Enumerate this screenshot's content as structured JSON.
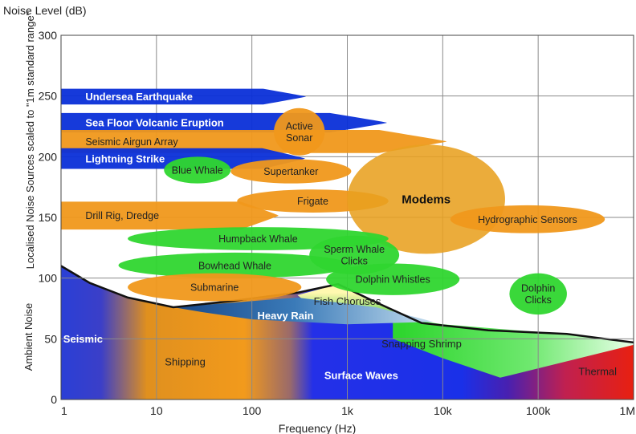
{
  "chart_data": {
    "type": "area",
    "title": "Noise Level (dB)",
    "xlabel": "Frequency (Hz)",
    "ylabel_upper": "Localised Noise Sources scaled to \"1m standard range\"",
    "ylabel_lower": "Ambient Noise",
    "x_scale": "log",
    "xlim": [
      1,
      1000000
    ],
    "ylim": [
      0,
      300
    ],
    "x_ticks": [
      {
        "value": 1,
        "label": "1"
      },
      {
        "value": 10,
        "label": "10"
      },
      {
        "value": 100,
        "label": "100"
      },
      {
        "value": 1000,
        "label": "1k"
      },
      {
        "value": 10000,
        "label": "10k"
      },
      {
        "value": 100000,
        "label": "100k"
      },
      {
        "value": 1000000,
        "label": "1M"
      }
    ],
    "y_ticks": [
      {
        "value": 0,
        "label": "0"
      },
      {
        "value": 50,
        "label": "50"
      },
      {
        "value": 100,
        "label": "100"
      },
      {
        "value": 150,
        "label": "150"
      },
      {
        "value": 200,
        "label": "200"
      },
      {
        "value": 250,
        "label": "250"
      },
      {
        "value": 300,
        "label": "300"
      }
    ],
    "grid": true,
    "ambient_boundary": [
      {
        "x": 1,
        "y": 110
      },
      {
        "x": 2,
        "y": 96
      },
      {
        "x": 5,
        "y": 84
      },
      {
        "x": 15,
        "y": 76
      },
      {
        "x": 60,
        "y": 81
      },
      {
        "x": 300,
        "y": 88
      },
      {
        "x": 800,
        "y": 95
      },
      {
        "x": 2000,
        "y": 80
      },
      {
        "x": 6000,
        "y": 63
      },
      {
        "x": 30000,
        "y": 57
      },
      {
        "x": 200000,
        "y": 54
      },
      {
        "x": 1000000,
        "y": 47
      }
    ],
    "ambient_regions": [
      {
        "label": "Seismic",
        "x": 1.7,
        "y": 47
      },
      {
        "label": "Shipping",
        "x": 20,
        "y": 28
      },
      {
        "label": "Surface Waves",
        "x": 1400,
        "y": 17
      },
      {
        "label": "Thermal",
        "x": 420000,
        "y": 20
      },
      {
        "label": "Snapping Shrimp",
        "x": 6000,
        "y": 43
      },
      {
        "label": "Heavy Rain",
        "x": 225,
        "y": 66
      },
      {
        "label": "Fish Choruses",
        "x": 1000,
        "y": 78
      }
    ],
    "sources": [
      {
        "label": "Undersea Earthquake",
        "x_min": 1,
        "x_max": 370,
        "y_min": 243,
        "y_max": 256,
        "color": "#0a2fd8",
        "label_color": "#ffffff",
        "label_bold": true,
        "label_x": 1.8
      },
      {
        "label": "Sea Floor Volcanic Eruption",
        "x_min": 1,
        "x_max": 2600,
        "y_min": 220,
        "y_max": 236,
        "color": "#0a2fd8",
        "label_color": "#ffffff",
        "label_bold": true,
        "label_x": 1.8
      },
      {
        "label": "Seismic Airgun Array",
        "x_min": 1,
        "x_max": 11000,
        "y_min": 203,
        "y_max": 222,
        "color": "#f0981b",
        "label_color": "#222222",
        "label_bold": false,
        "label_x": 1.8
      },
      {
        "label": "Lightning Strike",
        "x_min": 1,
        "x_max": 360,
        "y_min": 190,
        "y_max": 207,
        "color": "#0a2fd8",
        "label_color": "#ffffff",
        "label_bold": true,
        "label_x": 1.8
      },
      {
        "label": "Active Sonar",
        "x_min": 170,
        "x_max": 580,
        "y_min": 201,
        "y_max": 240,
        "color": "#f0981b",
        "label_color": "#222222",
        "label_bold": false
      },
      {
        "label": "Blue Whale",
        "x_min": 12,
        "x_max": 60,
        "y_min": 178,
        "y_max": 200,
        "color": "#2fd62f",
        "label_color": "#222222",
        "label_bold": false
      },
      {
        "label": "Supertanker",
        "x_min": 60,
        "x_max": 1100,
        "y_min": 178,
        "y_max": 198,
        "color": "#f0981b",
        "label_color": "#222222",
        "label_bold": false
      },
      {
        "label": "Frigate",
        "x_min": 70,
        "x_max": 2700,
        "y_min": 154,
        "y_max": 173,
        "color": "#f0981b",
        "label_color": "#222222",
        "label_bold": false
      },
      {
        "label": "Modems",
        "x_min": 1000,
        "x_max": 45000,
        "y_min": 120,
        "y_max": 210,
        "color": "#e8a020",
        "label_color": "#111111",
        "label_bold": true,
        "label_size": 15
      },
      {
        "label": "Hydrographic Sensors",
        "x_min": 12000,
        "x_max": 500000,
        "y_min": 137,
        "y_max": 160,
        "color": "#f0981b",
        "label_color": "#222222",
        "label_bold": false
      },
      {
        "label": "Drill Rig, Dredge",
        "x_min": 1,
        "x_max": 190,
        "y_min": 140,
        "y_max": 163,
        "color": "#f0981b",
        "label_color": "#222222",
        "label_bold": false,
        "label_x": 1.8
      },
      {
        "label": "Humpback Whale",
        "x_min": 5,
        "x_max": 2700,
        "y_min": 123,
        "y_max": 142,
        "color": "#2fd62f",
        "label_color": "#222222",
        "label_bold": false
      },
      {
        "label": "Bowhead Whale",
        "x_min": 4,
        "x_max": 1100,
        "y_min": 100,
        "y_max": 121,
        "color": "#2fd62f",
        "label_color": "#222222",
        "label_bold": false
      },
      {
        "label": "Sperm Whale Clicks",
        "x_min": 400,
        "x_max": 3500,
        "y_min": 103,
        "y_max": 135,
        "color": "#2fd62f",
        "label_color": "#222222",
        "label_bold": false
      },
      {
        "label": "Dolphin Whistles",
        "x_min": 600,
        "x_max": 15000,
        "y_min": 86,
        "y_max": 112,
        "color": "#2fd62f",
        "label_color": "#222222",
        "label_bold": false
      },
      {
        "label": "Dolphin Clicks",
        "x_min": 50000,
        "x_max": 200000,
        "y_min": 70,
        "y_max": 104,
        "color": "#2fd62f",
        "label_color": "#222222",
        "label_bold": false
      },
      {
        "label": "Submarine",
        "x_min": 5,
        "x_max": 330,
        "y_min": 81,
        "y_max": 104,
        "color": "#f0981b",
        "label_color": "#222222",
        "label_bold": false
      }
    ],
    "colors": {
      "blue": "#0a2fd8",
      "orange": "#f0981b",
      "green": "#2fd62f",
      "red": "#e02010",
      "grid": "#8a8a8a"
    }
  }
}
